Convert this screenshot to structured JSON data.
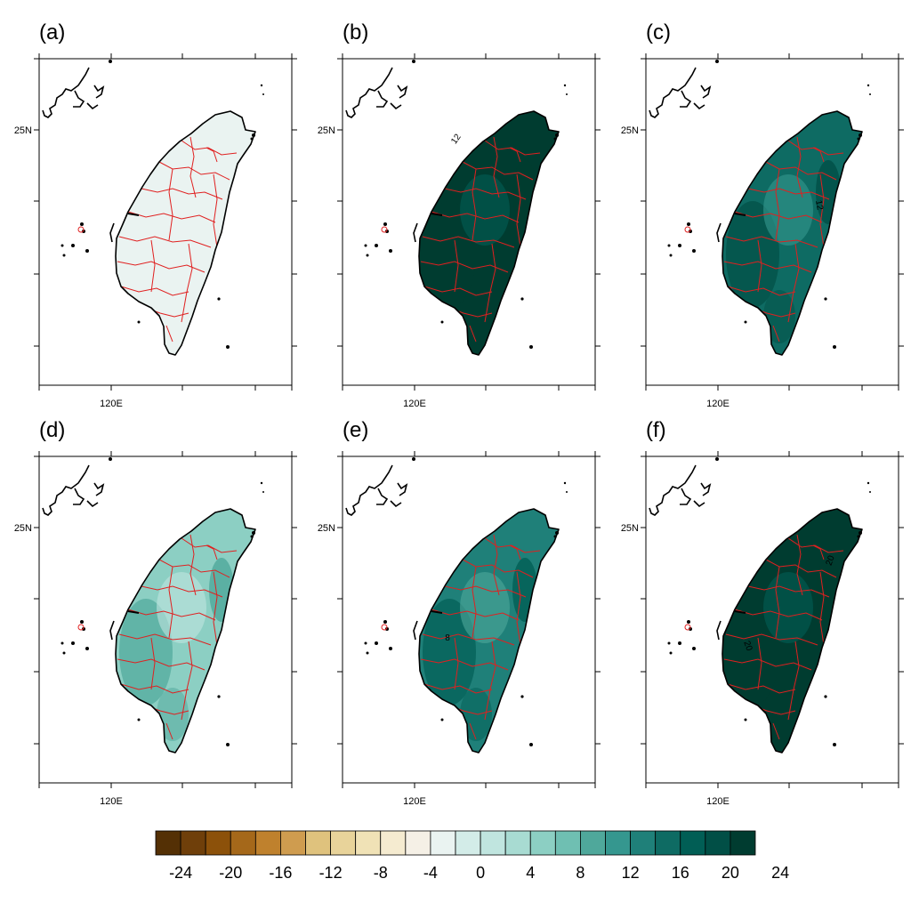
{
  "panels": [
    {
      "label": "(a)",
      "fill_level": 0,
      "contour_labels": []
    },
    {
      "label": "(b)",
      "fill_level": 13,
      "contour_labels": [
        "12"
      ]
    },
    {
      "label": "(c)",
      "fill_level": 9,
      "contour_labels": [
        "12"
      ]
    },
    {
      "label": "(d)",
      "fill_level": 4,
      "contour_labels": []
    },
    {
      "label": "(e)",
      "fill_level": 8,
      "contour_labels": [
        "8"
      ]
    },
    {
      "label": "(f)",
      "fill_level": 21,
      "contour_labels": [
        "20",
        "20"
      ]
    }
  ],
  "axes": {
    "lat_tick_label": "25N",
    "lon_tick_label": "120E"
  },
  "colorbar": {
    "tick_labels": [
      "-24",
      "-20",
      "-16",
      "-12",
      "-8",
      "-4",
      "0",
      "4",
      "8",
      "12",
      "16",
      "20",
      "24"
    ],
    "colors": [
      "#543005",
      "#6f3f0a",
      "#8c510a",
      "#a5681a",
      "#bf812d",
      "#cf9c4f",
      "#dfc27d",
      "#e8d39a",
      "#f0e2b6",
      "#f5ebd0",
      "#f5f0e6",
      "#eaf3f1",
      "#d3ece8",
      "#c0e5df",
      "#a8dbd2",
      "#8ccfc3",
      "#6fbfb2",
      "#4fa89b",
      "#35978f",
      "#1f8079",
      "#0e6b63",
      "#015e55",
      "#014f46",
      "#003c30"
    ]
  },
  "colors": {
    "coastline": "#000000",
    "boundaries": "#e02020",
    "frame": "#000000"
  }
}
